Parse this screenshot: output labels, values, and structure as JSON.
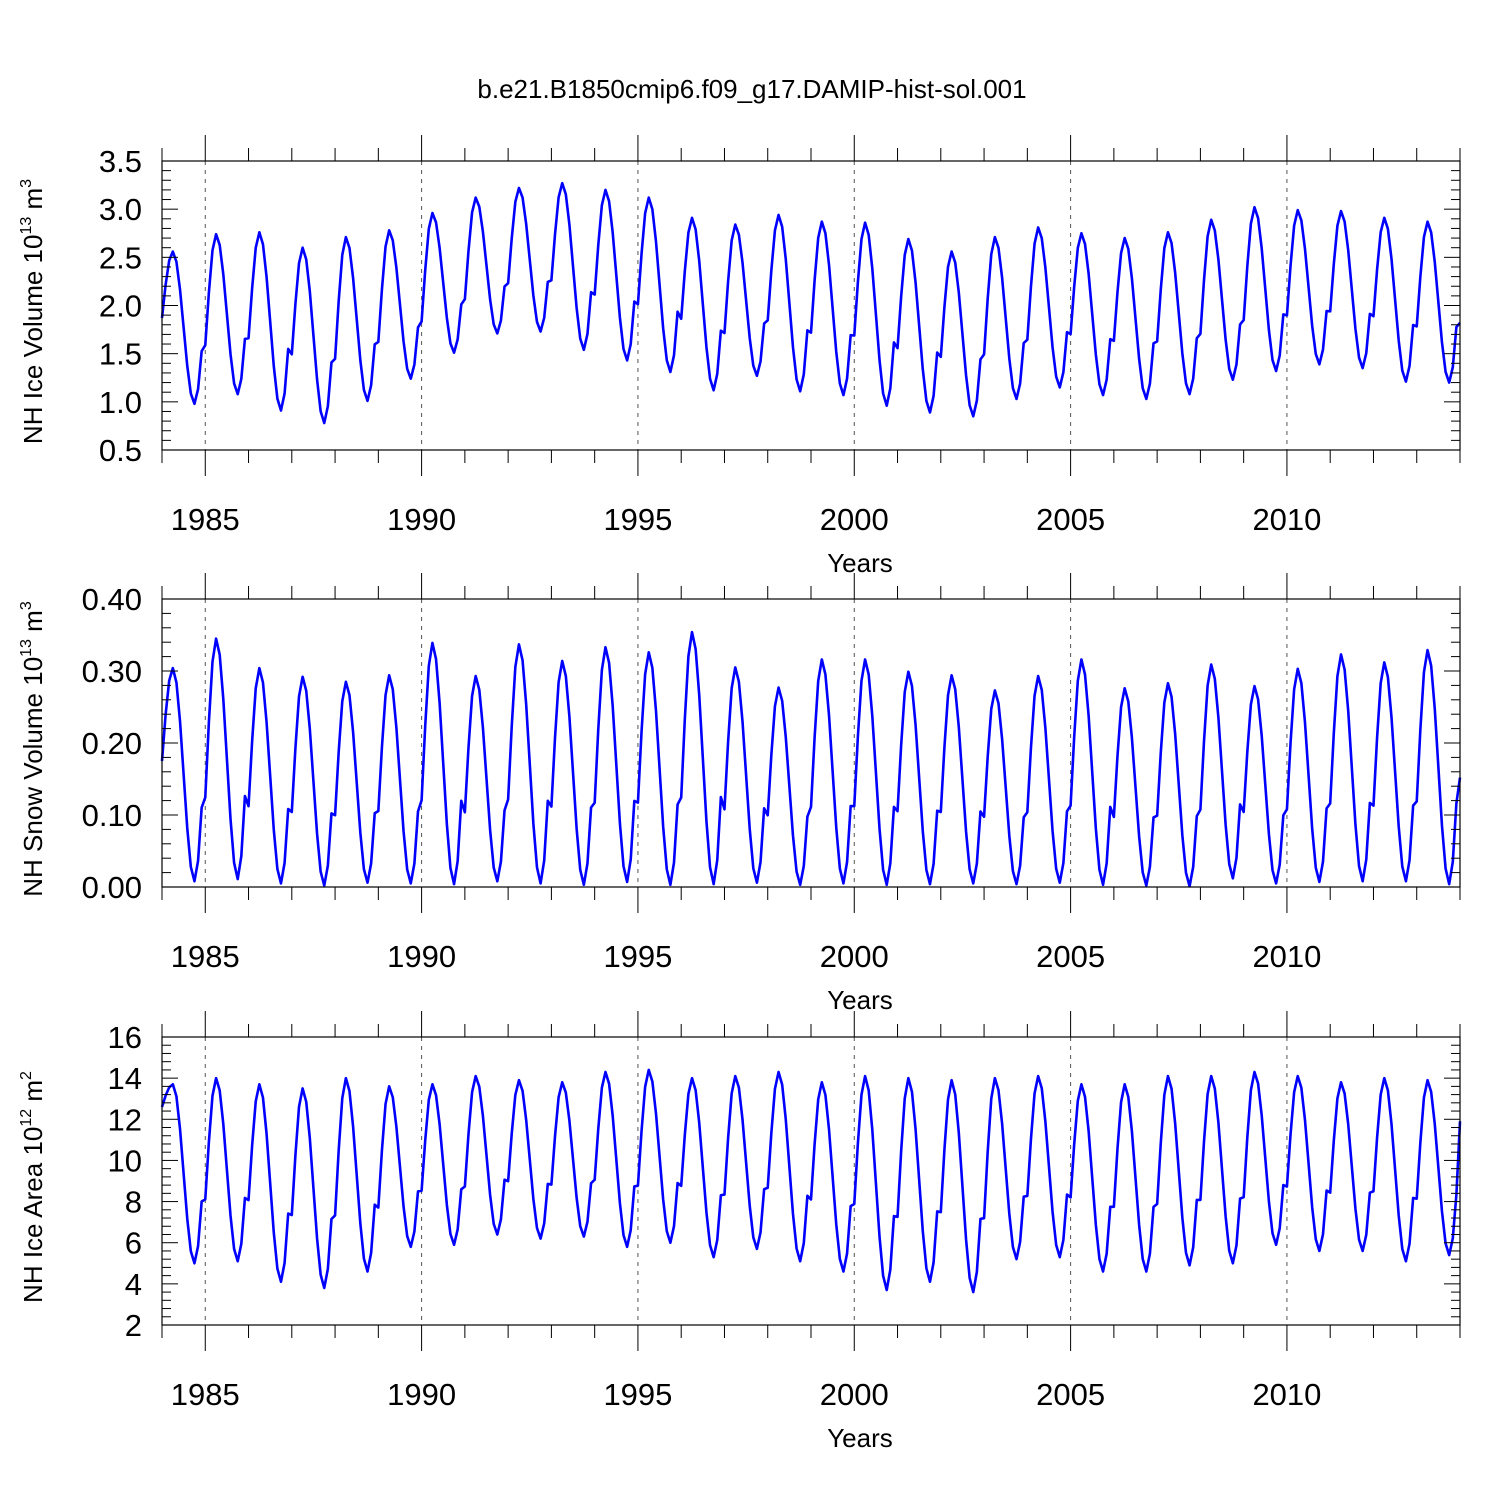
{
  "title": "b.e21.B1850cmip6.f09_g17.DAMIP-hist-sol.001",
  "colors": {
    "series": "#0000ff",
    "axes": "#000000",
    "grid": "#555555"
  },
  "chart_data": [
    {
      "type": "line",
      "name": "ice-volume",
      "ylabel": "NH Ice Volume 10",
      "ylabel_exp": "13",
      "ylabel_unit": " m",
      "ylabel_unit_exp": "3",
      "xlabel": "Years",
      "xlim": [
        1984.0,
        2014.0
      ],
      "ylim": [
        0.5,
        3.5
      ],
      "xticks": [
        1985,
        1990,
        1995,
        2000,
        2005,
        2010
      ],
      "xtick_labels": [
        "1985",
        "1990",
        "1995",
        "2000",
        "2005",
        "2010"
      ],
      "yticks": [
        0.5,
        1.0,
        1.5,
        2.0,
        2.5,
        3.0,
        3.5
      ],
      "ytick_labels": [
        "0.5",
        "1.0",
        "1.5",
        "2.0",
        "2.5",
        "3.0",
        "3.5"
      ],
      "annual_max": [
        2.56,
        2.74,
        2.76,
        2.6,
        2.71,
        2.78,
        2.96,
        3.12,
        3.22,
        3.27,
        3.2,
        3.12,
        2.91,
        2.84,
        2.94,
        2.87,
        2.86,
        2.69,
        2.56,
        2.71,
        2.81,
        2.75,
        2.7,
        2.76,
        2.89,
        3.02,
        2.99,
        2.98,
        2.91,
        2.87
      ],
      "annual_min": [
        0.98,
        1.08,
        0.91,
        0.78,
        1.01,
        1.24,
        1.51,
        1.71,
        1.73,
        1.54,
        1.43,
        1.31,
        1.12,
        1.27,
        1.11,
        1.07,
        0.96,
        0.89,
        0.85,
        1.03,
        1.15,
        1.07,
        1.03,
        1.08,
        1.23,
        1.32,
        1.39,
        1.35,
        1.21,
        1.2
      ],
      "start_value": 1.87,
      "end_value": 1.82
    },
    {
      "type": "line",
      "name": "snow-volume",
      "ylabel": "NH Snow Volume 10",
      "ylabel_exp": "13",
      "ylabel_unit": " m",
      "ylabel_unit_exp": "3",
      "xlabel": "Years",
      "xlim": [
        1984.0,
        2014.0
      ],
      "ylim": [
        0.0,
        0.4
      ],
      "xticks": [
        1985,
        1990,
        1995,
        2000,
        2005,
        2010
      ],
      "xtick_labels": [
        "1985",
        "1990",
        "1995",
        "2000",
        "2005",
        "2010"
      ],
      "yticks": [
        0.0,
        0.1,
        0.2,
        0.3,
        0.4
      ],
      "ytick_labels": [
        "0.00",
        "0.10",
        "0.20",
        "0.30",
        "0.40"
      ],
      "annual_max": [
        0.304,
        0.345,
        0.304,
        0.292,
        0.285,
        0.294,
        0.339,
        0.293,
        0.337,
        0.314,
        0.333,
        0.326,
        0.354,
        0.305,
        0.277,
        0.316,
        0.316,
        0.299,
        0.294,
        0.273,
        0.293,
        0.316,
        0.276,
        0.283,
        0.309,
        0.279,
        0.303,
        0.323,
        0.312,
        0.329
      ],
      "annual_min": [
        0.008,
        0.011,
        0.005,
        0.002,
        0.006,
        0.005,
        0.004,
        0.008,
        0.005,
        0.003,
        0.007,
        0.003,
        0.004,
        0.006,
        0.003,
        0.005,
        0.003,
        0.004,
        0.005,
        0.004,
        0.006,
        0.003,
        0.002,
        0.001,
        0.012,
        0.005,
        0.007,
        0.008,
        0.008,
        0.004
      ],
      "start_value": 0.175,
      "end_value": 0.152
    },
    {
      "type": "line",
      "name": "ice-area",
      "ylabel": "NH Ice Area 10",
      "ylabel_exp": "12",
      "ylabel_unit": " m",
      "ylabel_unit_exp": "2",
      "xlabel": "Years",
      "xlim": [
        1984.0,
        2014.0
      ],
      "ylim": [
        2,
        16
      ],
      "xticks": [
        1985,
        1990,
        1995,
        2000,
        2005,
        2010
      ],
      "xtick_labels": [
        "1985",
        "1990",
        "1995",
        "2000",
        "2005",
        "2010"
      ],
      "yticks": [
        2,
        4,
        6,
        8,
        10,
        12,
        14,
        16
      ],
      "ytick_labels": [
        "2",
        "4",
        "6",
        "8",
        "10",
        "12",
        "14",
        "16"
      ],
      "annual_max": [
        13.7,
        14.0,
        13.7,
        13.5,
        14.0,
        13.6,
        13.7,
        14.1,
        13.9,
        13.8,
        14.3,
        14.4,
        14.0,
        14.1,
        14.3,
        13.8,
        14.1,
        14.0,
        13.9,
        14.0,
        14.1,
        13.7,
        13.7,
        14.1,
        14.1,
        14.3,
        14.1,
        13.8,
        14.0,
        13.9
      ],
      "annual_min": [
        5.0,
        5.1,
        4.1,
        3.8,
        4.6,
        5.8,
        5.9,
        6.4,
        6.2,
        6.3,
        5.8,
        6.0,
        5.3,
        5.7,
        5.1,
        4.6,
        3.7,
        4.1,
        3.6,
        5.2,
        5.3,
        4.6,
        4.6,
        4.9,
        5.0,
        5.9,
        5.6,
        5.6,
        5.1,
        5.4
      ],
      "start_value": 12.6,
      "end_value": 11.9
    }
  ]
}
